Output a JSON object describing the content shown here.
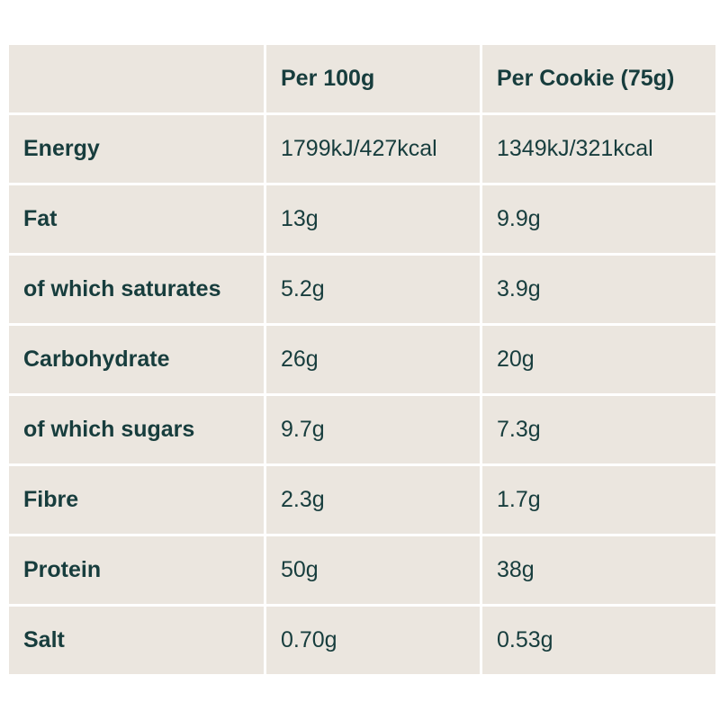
{
  "table": {
    "header": {
      "corner": "",
      "per_100g": "Per 100g",
      "per_cookie": "Per Cookie (75g)"
    },
    "rows": [
      {
        "label": "Energy",
        "per_100g": "1799kJ/427kcal",
        "per_cookie": "1349kJ/321kcal"
      },
      {
        "label": "Fat",
        "per_100g": "13g",
        "per_cookie": "9.9g"
      },
      {
        "label": "of which saturates",
        "per_100g": "5.2g",
        "per_cookie": "3.9g"
      },
      {
        "label": "Carbohydrate",
        "per_100g": "26g",
        "per_cookie": "20g"
      },
      {
        "label": "of which sugars",
        "per_100g": "9.7g",
        "per_cookie": "7.3g"
      },
      {
        "label": "Fibre",
        "per_100g": "2.3g",
        "per_cookie": "1.7g"
      },
      {
        "label": "Protein",
        "per_100g": "50g",
        "per_cookie": "38g"
      },
      {
        "label": "Salt",
        "per_100g": "0.70g",
        "per_cookie": "0.53g"
      }
    ]
  },
  "colors": {
    "cell_background": "#ebe6df",
    "text": "#173d3d",
    "grid_lines": "#ffffff"
  }
}
